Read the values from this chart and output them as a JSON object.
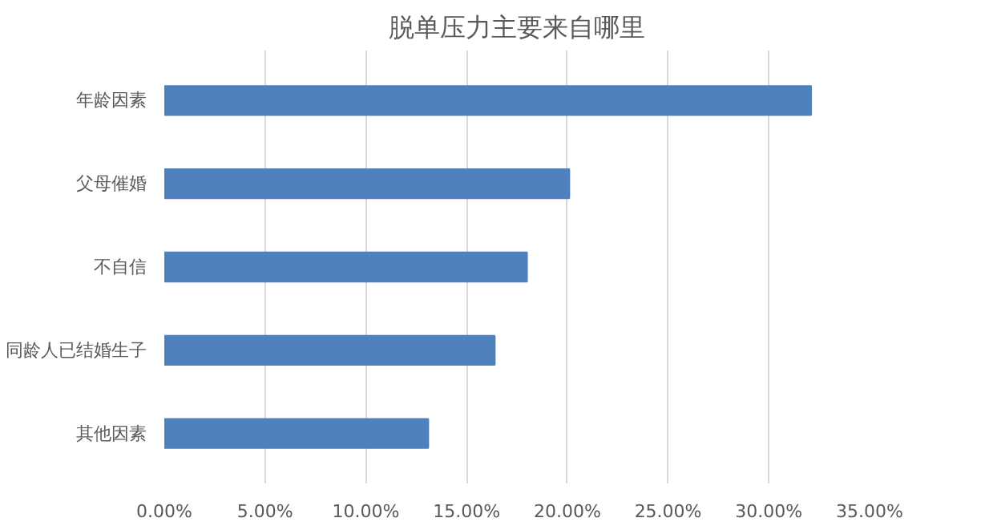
{
  "chart_data": {
    "type": "bar",
    "orientation": "horizontal",
    "title": "脱单压力主要来自哪里",
    "categories": [
      "年龄因素",
      "父母催婚",
      "不自信",
      "同龄人已结婚生子",
      "其他因素"
    ],
    "values": [
      32.1,
      20.1,
      18.0,
      16.4,
      13.1
    ],
    "color": "#4f81bd",
    "xlim": [
      0,
      35
    ],
    "xticks": [
      {
        "value": 0,
        "label": "0.00%"
      },
      {
        "value": 5,
        "label": "5.00%"
      },
      {
        "value": 10,
        "label": "10.00%"
      },
      {
        "value": 15,
        "label": "15.00%"
      },
      {
        "value": 20,
        "label": "20.00%"
      },
      {
        "value": 25,
        "label": "25.00%"
      },
      {
        "value": 30,
        "label": "30.00%"
      },
      {
        "value": 35,
        "label": "35.00%"
      }
    ],
    "grid": "x"
  }
}
